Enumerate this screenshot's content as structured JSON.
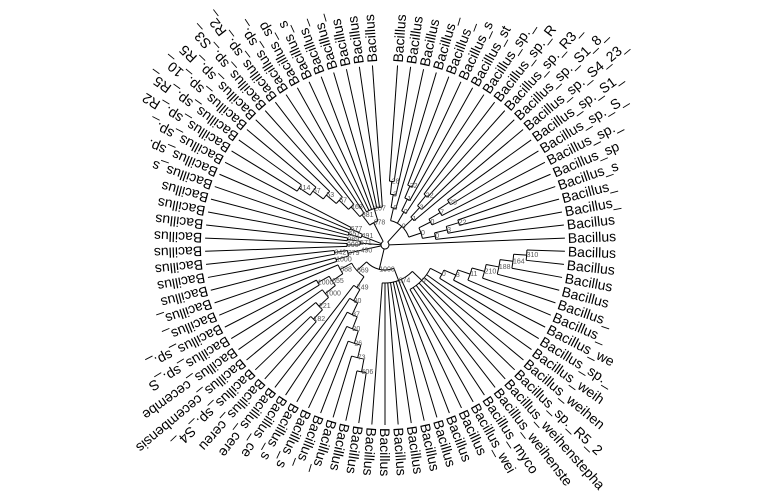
{
  "diagram": {
    "type": "circular-phylogenetic-tree",
    "colors": {
      "branch": "#000000",
      "tip_label": "#000000",
      "bootstrap_label": "#555555",
      "highlight_tip": "#c87000"
    },
    "tree": {
      "c": [
        {
          "b": "0",
          "c": [
            {
              "b": "0",
              "c": [
                {
                  "b": "3",
                  "c": [
                    {
                      "b": "28",
                      "c": [
                        "Bacillus",
                        "Bacillus"
                      ]
                    },
                    "Bacillus"
                  ]
                },
                "Bacillus_"
              ]
            },
            {
              "b": "0",
              "c": [
                {
                  "b": "1",
                  "c": [
                    {
                      "b": "32",
                      "c": [
                        "Bacillus_",
                        "Bacillus_s"
                      ]
                    },
                    "Bacillus_st"
                  ]
                },
                "Bacillus_sp._"
              ]
            },
            {
              "b": "1",
              "c": [
                {
                  "b": "3",
                  "c": [
                    {
                      "b": "22",
                      "c": [
                        "Bacillus_sp._R",
                        "Bacillus_sp._R3_"
                      ]
                    },
                    "Bacillus_sp._S1_8_"
                  ]
                },
                "Bacillus_sp._S4_23_"
              ]
            },
            {
              "b": "0",
              "c": [
                {
                  "b": "0",
                  "c": [
                    {
                      "b": "7",
                      "c": [
                        {
                          "b": "28",
                          "c": [
                            "Bacillus_sp._S1_",
                            "Bacillus_sp._S_"
                          ]
                        },
                        "Bacillus_sp._"
                      ]
                    },
                    "Bacillus_sp"
                  ]
                },
                {
                  "b": "0",
                  "c": [
                    {
                      "b": "3",
                      "c": [
                        {
                          "b": "22",
                          "c": [
                            "Bacillus_s",
                            "Bacillus_"
                          ]
                        },
                        "Bacillus_"
                      ]
                    },
                    "Bacillus"
                  ]
                }
              ]
            }
          ]
        },
        "Bacillus",
        {
          "b": "1000",
          "c": [
            {
              "b": "674",
              "c": [
                {
                  "b": "0",
                  "c": [
                    {
                      "b": "0",
                      "c": [
                        {
                          "b": "3",
                          "c": [
                            {
                              "b": "11",
                              "c": [
                                {
                                  "b": "210",
                                  "c": [
                                    {
                                      "b": "188",
                                      "c": [
                                        {
                                          "b": "164",
                                          "c": [
                                            {
                                              "b": "310",
                                              "c": [
                                                "Bacillus",
                                                "Bacillus"
                                              ]
                                            },
                                            "Bacillus"
                                          ]
                                        },
                                        "Bacillus"
                                      ]
                                    },
                                    "Bacillus_"
                                  ]
                                },
                                "Bacillus_"
                              ]
                            },
                            "Bacillus_we"
                          ]
                        },
                        "Bacillus_sp._"
                      ]
                    },
                    "Bacillus_weih",
                    "Bacillus_weihen",
                    "Bacillus_sp._R5_2",
                    "Bacillus_weihenstepha",
                    "Bacillus_weihenste",
                    "Bacillus_myco",
                    "Bacillus_wei"
                  ]
                },
                "Bacillus",
                "Bacillus",
                "Bacillus",
                "Bacillus",
                "Bacillus",
                "Bacillus",
                "Bacillus",
                "Bacillus"
              ]
            },
            {
              "b": "669",
              "c": [
                {
                  "b": "749",
                  "c": [
                    {
                      "b": "80",
                      "c": [
                        {
                          "b": "37",
                          "c": [
                            {
                              "b": "20",
                              "c": [
                                {
                                  "b": "26",
                                  "c": [
                                    {
                                      "b": "73",
                                      "c": [
                                        {
                                          "b": "506",
                                          "c": [
                                            "Bacillus",
                                            "Bacillus"
                                          ]
                                        },
                                        "Bacillus_"
                                      ]
                                    },
                                    "Bacillus_"
                                  ]
                                },
                                "Bacillus_s"
                              ]
                            },
                            "Bacillus_s"
                          ]
                        },
                        "Bacillus_ce"
                      ]
                    },
                    "Bacillus_cere"
                  ]
                },
                {
                  "b": "588",
                  "c": [
                    {
                      "b": "655",
                      "c": [
                        {
                          "b": "1000",
                          "c": [
                            {
                              "b": "221",
                              "c": [
                                {
                                  "b": "182",
                                  "c": [
                                    "Bacillus_cereu",
                                    "Bacillus_sp._S4_"
                                  ]
                                },
                                "Bacillus_cecembensis"
                              ]
                            },
                            "Bacillus_cecembe"
                          ]
                        },
                        {
                          "b": "1000",
                          "c": [
                            "Bacillus_sp._S",
                            "Bacillus_sp._"
                          ]
                        }
                      ]
                    },
                    "Bacillus_"
                  ]
                }
              ]
            }
          ]
        },
        {
          "b": "490",
          "c": [
            {
              "b": "379",
              "c": [
                {
                  "b": "1000",
                  "c": [
                    "Bacillus_",
                    "Bacillus"
                  ]
                },
                {
                  "b": "342",
                  "c": [
                    "Bacillus",
                    "Bacillus"
                  ]
                }
              ]
            }
          ]
        },
        {
          "b": "571",
          "c": [
            {
              "b": "990",
              "c": [
                "Bacillus",
                "Bacillus"
              ]
            },
            {
              "b": "989",
              "c": [
                "Bacillus",
                "Bacillus"
              ]
            }
          ]
        },
        {
          "b": "491",
          "c": [
            {
              "b": "657",
              "c": [
                "Bacillus",
                "Bacillus_s"
              ]
            },
            {
              "b": "677",
              "c": [
                "Bacillus_sp.",
                "Bacillus_sp._"
              ]
            }
          ]
        },
        {
          "b": "678",
          "c": [
            {
              "b": "881",
              "c": [
                {
                  "b": "168",
                  "c": [
                    {
                      "b": "57",
                      "c": [
                        {
                          "b": "53",
                          "c": [
                            {
                              "b": "67",
                              "c": [
                                {
                                  "b": "114",
                                  "c": [
                                    "Bacillus_sp._R2",
                                    "Bacillus_sp._R5_"
                                  ]
                                },
                                "Bacillus_sp._10_"
                              ]
                            },
                            "Bacillus_sp._R5"
                          ]
                        },
                        "Bacillus_sp._S3_"
                      ]
                    },
                    "Bacillus_sp._R2_"
                  ]
                },
                "Bacillus_sp._"
              ]
            },
            {
              "b": "207",
              "c": [
                "Bacillus_sp",
                "Bacillus_s",
                "Bacillus_",
                "Bacillus_",
                "Bacillus",
                "Bacillus",
                "Bacillus"
              ]
            }
          ]
        }
      ]
    }
  }
}
